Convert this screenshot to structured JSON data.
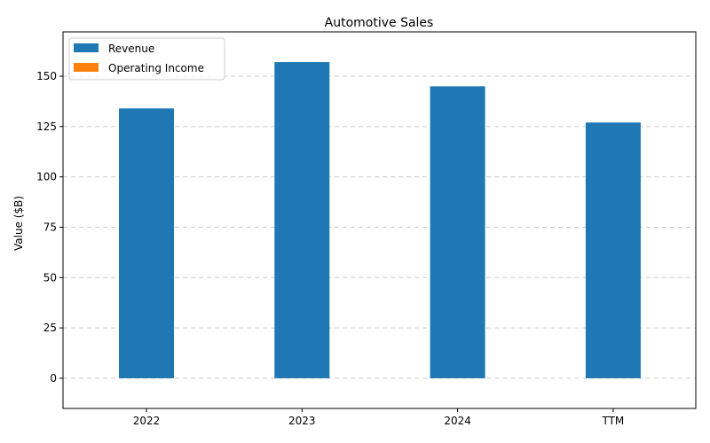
{
  "chart_data": {
    "type": "bar",
    "title": "Automotive Sales",
    "xlabel": "",
    "ylabel": "Value ($B)",
    "categories": [
      "2022",
      "2023",
      "2024",
      "TTM"
    ],
    "series": [
      {
        "name": "Revenue",
        "color": "#1f77b4",
        "values": [
          134,
          157,
          145,
          127
        ]
      },
      {
        "name": "Operating Income",
        "color": "#ff7f0e",
        "values": [
          0,
          0,
          0,
          0
        ]
      }
    ],
    "ylim": [
      -15,
      172
    ],
    "yticks": [
      0,
      25,
      50,
      75,
      100,
      125,
      150
    ],
    "grid": "y-dashed",
    "legend_position": "top-left"
  }
}
